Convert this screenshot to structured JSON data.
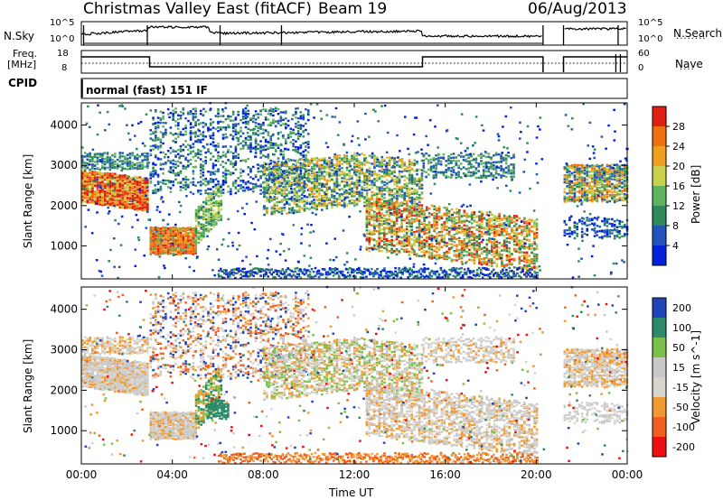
{
  "header": {
    "station": "Christmas Valley East (fitACF)",
    "beam": "Beam 19",
    "date": "06/Aug/2013"
  },
  "side_labels": {
    "nsky": "N.Sky",
    "freq_line1": "Freq.",
    "freq_line2": "[MHz]",
    "cpid": "CPID",
    "nsearch": "N.Search",
    "nave": "Nave"
  },
  "strip_ticks": {
    "noise_left_top": "10^5",
    "noise_left_bottom": "10^0",
    "noise_right_top": "10^5",
    "noise_right_bottom": "10^0",
    "freq_left_top": "18",
    "freq_left_bottom": "8",
    "nave_right_top": "60",
    "nave_right_bottom": "0"
  },
  "cpid_text": "normal (fast) 151 IF",
  "colors": {
    "power": [
      "#0022dd",
      "#2255bb",
      "#2e8a57",
      "#5fb35f",
      "#c8d24a",
      "#f0a020",
      "#f07010",
      "#e02010"
    ],
    "velocity": [
      "#ee1010",
      "#f06020",
      "#f09a30",
      "#d7d4cc",
      "#c9c9c9",
      "#7cc04a",
      "#2a8a6a",
      "#2244bb"
    ]
  },
  "chart_data": [
    {
      "type": "heatmap",
      "panel": "power",
      "ylabel": "Slant Range [km]",
      "yticks": [
        "1000",
        "2000",
        "3000",
        "4000"
      ],
      "ylim": [
        180,
        4550
      ],
      "xlim": [
        0,
        24
      ],
      "colorbar_label": "Power [dB]",
      "colorbar_ticks": [
        "4",
        "8",
        "12",
        "16",
        "20",
        "24",
        "28"
      ],
      "features": [
        {
          "t": [
            0.0,
            2.9
          ],
          "range_km": [
            2000,
            3000
          ],
          "level": "high"
        },
        {
          "t": [
            2.9,
            5.0
          ],
          "range_km": [
            800,
            1500
          ],
          "level": "high"
        },
        {
          "t": [
            10.0,
            19.8
          ],
          "range_km": [
            900,
            2700
          ],
          "level": "medium-high"
        },
        {
          "t": [
            21.2,
            24.0
          ],
          "range_km": [
            2100,
            3000
          ],
          "level": "medium"
        }
      ]
    },
    {
      "type": "heatmap",
      "panel": "velocity",
      "ylabel": "Slant Range [km]",
      "yticks": [
        "1000",
        "2000",
        "3000",
        "4000"
      ],
      "ylim": [
        180,
        4550
      ],
      "xlim": [
        0,
        24
      ],
      "xlabel": "Time UT",
      "xticks": [
        "00:00",
        "04:00",
        "08:00",
        "12:00",
        "16:00",
        "20:00",
        "00:00"
      ],
      "colorbar_label": "Velocity [m s^-1]",
      "colorbar_ticks": [
        "200",
        "100",
        "50",
        "15",
        "-15",
        "-50",
        "-100",
        "-200"
      ],
      "features": [
        {
          "t": [
            0.0,
            2.9
          ],
          "range_km": [
            2000,
            3000
          ],
          "velocity": "near zero"
        },
        {
          "t": [
            2.9,
            5.0
          ],
          "range_km": [
            800,
            1500
          ],
          "velocity": "near zero"
        },
        {
          "t": [
            5.0,
            6.2
          ],
          "range_km": [
            1300,
            1800
          ],
          "velocity": "positive"
        },
        {
          "t": [
            6.0,
            20.0
          ],
          "range_km": [
            180,
            400
          ],
          "velocity": "negative"
        }
      ]
    }
  ]
}
